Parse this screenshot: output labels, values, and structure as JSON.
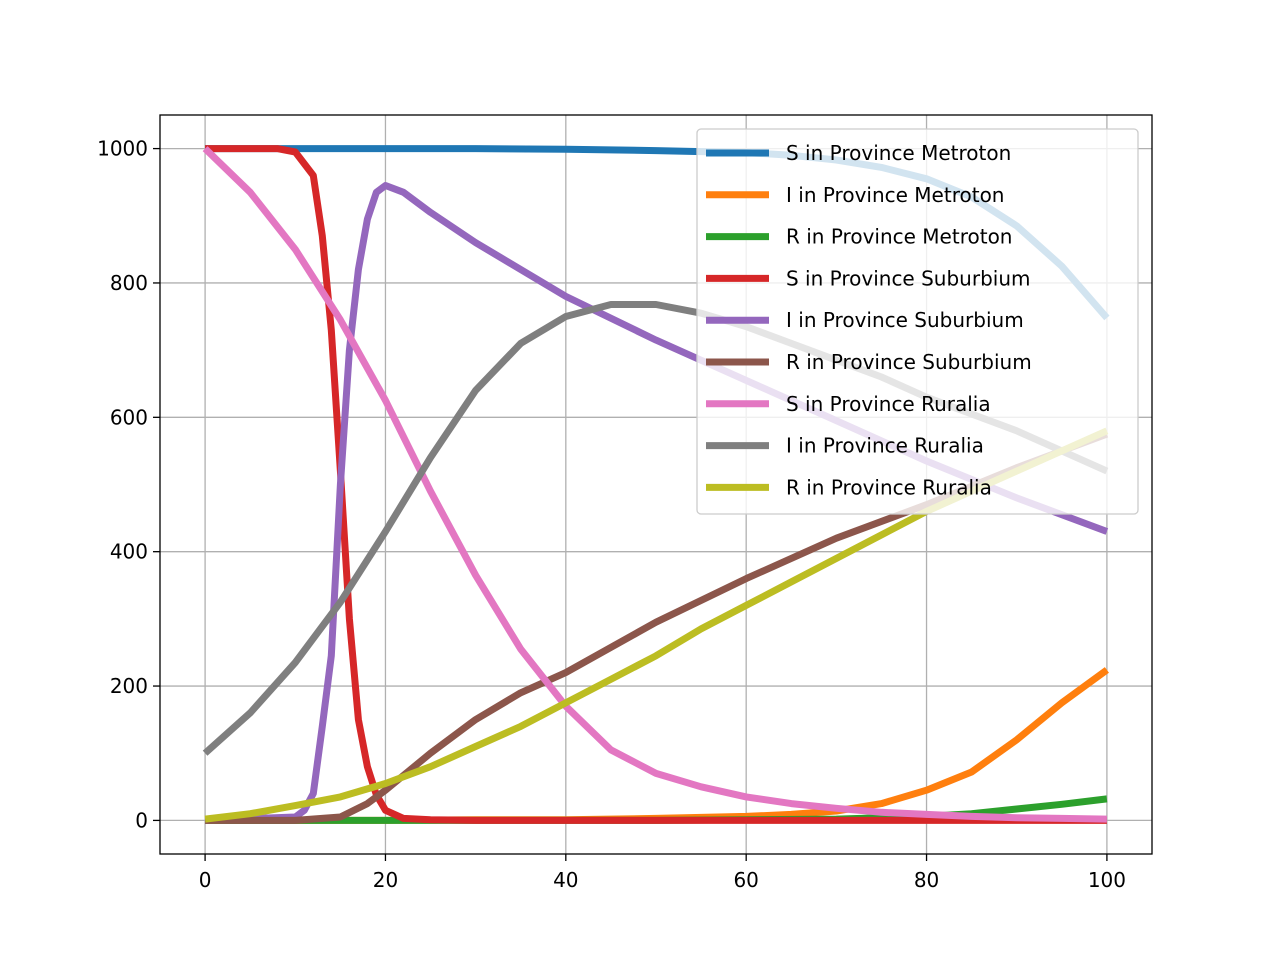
{
  "chart_data": {
    "type": "line",
    "title": "",
    "xlabel": "",
    "ylabel": "",
    "xlim": [
      -5,
      105
    ],
    "ylim": [
      -50,
      1050
    ],
    "xticks": [
      0,
      20,
      40,
      60,
      80,
      100
    ],
    "yticks": [
      0,
      200,
      400,
      600,
      800,
      1000
    ],
    "xtick_labels": [
      "0",
      "20",
      "40",
      "60",
      "80",
      "100"
    ],
    "ytick_labels": [
      "0",
      "200",
      "400",
      "600",
      "800",
      "1000"
    ],
    "grid": true,
    "legend_position": "top-right",
    "series": [
      {
        "name": "S in Province Metroton",
        "color": "#1f77b4",
        "x": [
          0,
          10,
          20,
          30,
          40,
          50,
          60,
          65,
          70,
          75,
          80,
          85,
          90,
          95,
          100
        ],
        "y": [
          1000,
          1000,
          1000,
          1000,
          999,
          997,
          994,
          990,
          983,
          972,
          955,
          928,
          885,
          825,
          748
        ]
      },
      {
        "name": "I in Province Metroton",
        "color": "#ff7f0e",
        "x": [
          0,
          10,
          20,
          30,
          40,
          50,
          60,
          65,
          70,
          75,
          80,
          85,
          90,
          95,
          100
        ],
        "y": [
          0,
          0,
          0,
          1,
          1,
          3,
          6,
          9,
          14,
          25,
          45,
          72,
          120,
          175,
          224
        ]
      },
      {
        "name": "R in Province Metroton",
        "color": "#2ca02c",
        "x": [
          0,
          10,
          20,
          30,
          40,
          50,
          60,
          70,
          80,
          85,
          90,
          95,
          100
        ],
        "y": [
          0,
          0,
          0,
          0,
          0,
          0,
          1,
          2,
          6,
          10,
          17,
          24,
          32
        ]
      },
      {
        "name": "S in Province Suburbium",
        "color": "#d62728",
        "x": [
          0,
          2,
          4,
          6,
          8,
          10,
          12,
          13,
          14,
          15,
          16,
          17,
          18,
          19,
          20,
          22,
          25,
          30,
          40,
          60,
          80,
          100
        ],
        "y": [
          1000,
          1000,
          1000,
          1000,
          1000,
          995,
          960,
          870,
          730,
          520,
          300,
          150,
          80,
          38,
          15,
          3,
          1,
          0,
          0,
          0,
          0,
          0
        ]
      },
      {
        "name": "I in Province Suburbium",
        "color": "#9467bd",
        "x": [
          0,
          10,
          11,
          12,
          13,
          14,
          15,
          16,
          17,
          18,
          19,
          20,
          22,
          25,
          30,
          40,
          50,
          60,
          70,
          80,
          90,
          100
        ],
        "y": [
          0,
          5,
          15,
          40,
          140,
          245,
          500,
          700,
          820,
          895,
          935,
          945,
          935,
          905,
          860,
          780,
          715,
          655,
          595,
          535,
          480,
          430
        ]
      },
      {
        "name": "R in Province Suburbium",
        "color": "#8c564b",
        "x": [
          0,
          10,
          15,
          18,
          20,
          25,
          30,
          35,
          40,
          50,
          60,
          70,
          80,
          90,
          100
        ],
        "y": [
          0,
          0,
          5,
          25,
          45,
          100,
          150,
          190,
          220,
          295,
          360,
          420,
          470,
          525,
          575
        ]
      },
      {
        "name": "S in Province Ruralia",
        "color": "#e377c2",
        "x": [
          0,
          5,
          10,
          15,
          20,
          25,
          30,
          35,
          40,
          45,
          50,
          55,
          60,
          65,
          70,
          75,
          80,
          85,
          90,
          95,
          100
        ],
        "y": [
          1000,
          935,
          850,
          745,
          625,
          490,
          365,
          255,
          170,
          105,
          70,
          50,
          35,
          25,
          18,
          12,
          9,
          6,
          4,
          3,
          2
        ]
      },
      {
        "name": "I in Province Ruralia",
        "color": "#7f7f7f",
        "x": [
          0,
          5,
          10,
          15,
          20,
          25,
          30,
          35,
          40,
          45,
          50,
          55,
          60,
          65,
          70,
          75,
          80,
          85,
          90,
          95,
          100
        ],
        "y": [
          100,
          160,
          235,
          325,
          430,
          540,
          640,
          710,
          750,
          768,
          768,
          755,
          735,
          710,
          685,
          660,
          630,
          605,
          580,
          550,
          520
        ]
      },
      {
        "name": "R in Province Ruralia",
        "color": "#bcbd22",
        "x": [
          0,
          5,
          10,
          15,
          20,
          25,
          30,
          35,
          40,
          45,
          50,
          55,
          60,
          65,
          70,
          75,
          80,
          85,
          90,
          95,
          100
        ],
        "y": [
          2,
          10,
          22,
          35,
          55,
          80,
          110,
          140,
          175,
          210,
          245,
          285,
          320,
          355,
          390,
          425,
          460,
          490,
          520,
          550,
          580
        ]
      }
    ]
  }
}
